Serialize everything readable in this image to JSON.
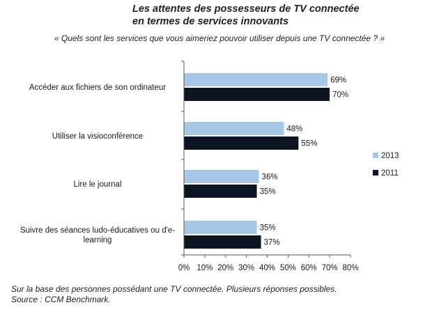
{
  "header": {
    "title": "Les attentes des possesseurs de TV connectée\nen termes de services innovants",
    "subtitle": "« Quels sont les services que vous aimeriez pouvoir utiliser depuis une TV connectée ? »"
  },
  "footer": {
    "note": "Sur la base des personnes possédant une TV connectée. Plusieurs réponses possibles.",
    "source": "Source : CCM Benchmark."
  },
  "colors": {
    "s2013": "#a6c8e6",
    "s2011": "#0d1523"
  },
  "chart_data": {
    "type": "bar",
    "orientation": "horizontal",
    "categories": [
      [
        "Accéder aux fichiers de son ordinateur"
      ],
      [
        "Utiliser la visioconférence"
      ],
      [
        "Lire le journal"
      ],
      [
        "Suivre des séances ludo-éducatives ou d'e-",
        "learning"
      ]
    ],
    "series": [
      {
        "name": "2013",
        "values": [
          69,
          48,
          36,
          35
        ]
      },
      {
        "name": "2011",
        "values": [
          70,
          55,
          35,
          37
        ]
      }
    ],
    "value_labels": [
      [
        "69%",
        "48%",
        "36%",
        "35%"
      ],
      [
        "70%",
        "55%",
        "35%",
        "37%"
      ]
    ],
    "xlim": [
      0,
      80
    ],
    "ticks": [
      "0%",
      "10%",
      "20%",
      "30%",
      "40%",
      "50%",
      "60%",
      "70%",
      "80%"
    ],
    "legend_position": "right",
    "grid": false
  }
}
